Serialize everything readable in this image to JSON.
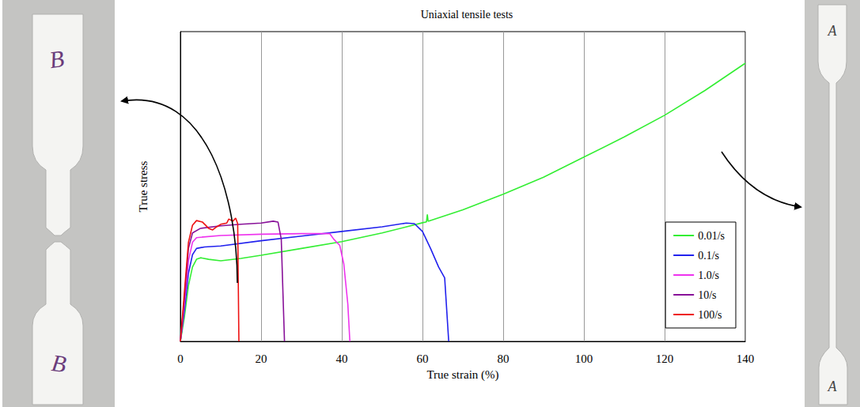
{
  "chart_data": {
    "type": "line",
    "title": "Uniaxial tensile tests",
    "x_label": "True strain (%)",
    "y_label": "True stress",
    "xlim": [
      0,
      140
    ],
    "xticks": [
      0,
      20,
      40,
      60,
      80,
      100,
      120,
      140
    ],
    "ylim": [
      0,
      100
    ],
    "tick_labels": "x",
    "grid": true,
    "legend": "lower right",
    "series": [
      {
        "name": "0.01/s",
        "color": "#33ee33",
        "x": [
          0,
          1,
          2,
          3,
          4,
          5,
          7,
          10,
          15,
          20,
          30,
          40,
          50,
          60,
          61,
          61.2,
          61.4,
          70,
          80,
          90,
          100,
          110,
          120,
          130,
          140
        ],
        "values": [
          0,
          8,
          18,
          24,
          26.5,
          27,
          26.5,
          26,
          26.8,
          27.8,
          30,
          32.2,
          35,
          38.3,
          38.6,
          41,
          38.8,
          42.5,
          47.5,
          53,
          59.5,
          66,
          73,
          81,
          89.8
        ]
      },
      {
        "name": "0.1/s",
        "color": "#2222ee",
        "x": [
          0,
          1,
          2,
          3,
          4,
          6,
          10,
          20,
          30,
          40,
          50,
          56,
          58,
          60,
          62,
          64,
          65.5,
          66.5
        ],
        "values": [
          0,
          10,
          22,
          28,
          30,
          30.5,
          30.8,
          32.5,
          34,
          35.5,
          37,
          38.2,
          38,
          35.5,
          30,
          24,
          20.5,
          0
        ]
      },
      {
        "name": "1.0/s",
        "color": "#ee33ee",
        "x": [
          0,
          1,
          2,
          3,
          4,
          10,
          20,
          30,
          37,
          38,
          39.5,
          40.5,
          41.5,
          42
        ],
        "values": [
          0,
          12,
          26,
          32,
          33.5,
          34.2,
          34.6,
          34.8,
          34.8,
          33,
          31,
          25,
          12,
          0
        ]
      },
      {
        "name": "10/s",
        "color": "#881199",
        "x": [
          0,
          1,
          2,
          3,
          5,
          10,
          15,
          20,
          23,
          24.2,
          25,
          25.8
        ],
        "values": [
          0,
          14,
          30,
          35,
          36.5,
          37.3,
          37.8,
          38.2,
          38.8,
          38.5,
          33,
          0
        ]
      },
      {
        "name": "100/s",
        "color": "#ee1111",
        "x": [
          0,
          1,
          2,
          3,
          4,
          5.5,
          7,
          8,
          9,
          10,
          11.5,
          12,
          13,
          13.7,
          14.2,
          14.5
        ],
        "values": [
          0,
          16,
          32,
          37.5,
          39,
          38.5,
          36.5,
          36,
          37,
          37.8,
          38.2,
          39.5,
          38.8,
          39.8,
          38,
          0
        ]
      }
    ],
    "annotations": {
      "left_specimen": [
        "B",
        "B"
      ],
      "right_specimen": [
        "A",
        "A"
      ]
    }
  }
}
